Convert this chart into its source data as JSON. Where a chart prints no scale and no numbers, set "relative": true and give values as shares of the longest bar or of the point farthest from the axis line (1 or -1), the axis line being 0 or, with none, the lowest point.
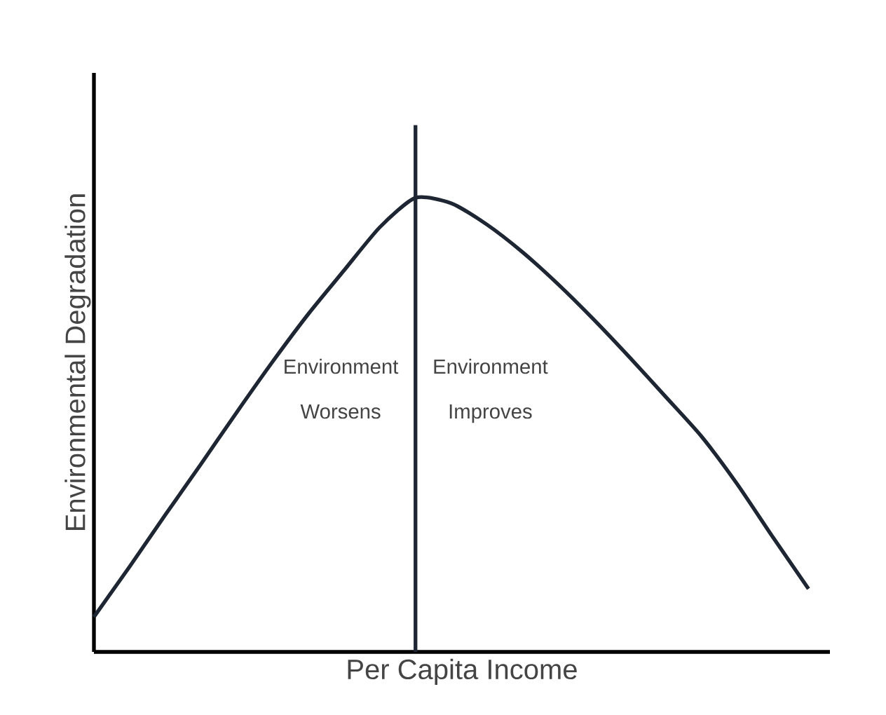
{
  "chart_data": {
    "type": "line",
    "relative": true,
    "xlabel": "Per Capita Income",
    "ylabel": "Environmental Degradation",
    "categories": [
      null,
      null,
      null,
      null,
      null,
      null,
      null,
      null,
      null,
      null,
      null,
      null,
      null,
      null,
      null,
      null,
      null,
      null,
      null,
      null,
      null
    ],
    "series": [
      {
        "color": "#1e2633",
        "values": [
          0.077,
          0.188,
          0.302,
          0.414,
          0.528,
          0.639,
          0.744,
          0.84,
          0.935,
          1,
          0.988,
          0.941,
          0.88,
          0.809,
          0.731,
          0.648,
          0.562,
          0.475,
          0.37,
          0.253,
          0.139
        ]
      }
    ],
    "annotations": [
      "Environment Worsens",
      "Environment Improves"
    ],
    "tick_labels": false,
    "marker": "none",
    "line_style": "solid"
  }
}
